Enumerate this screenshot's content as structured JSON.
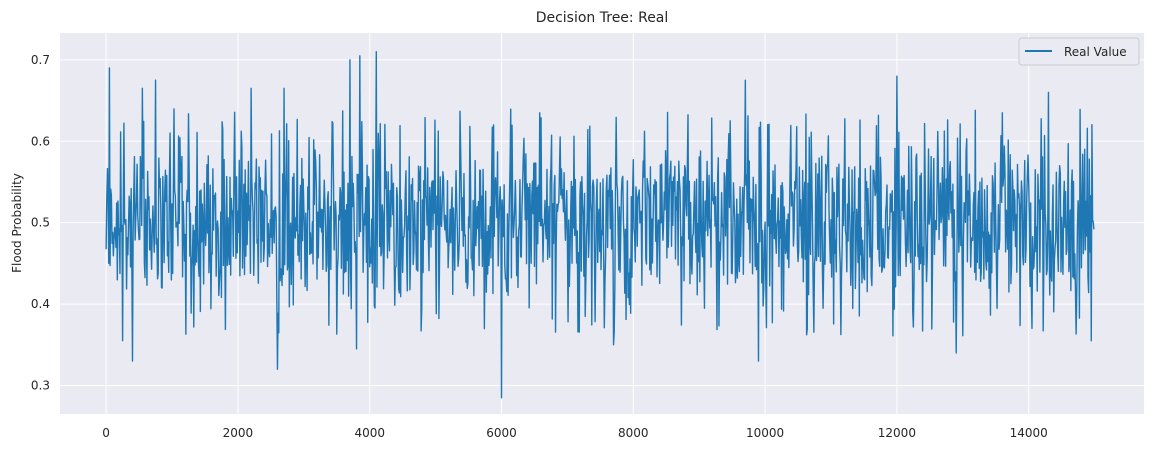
{
  "chart_data": {
    "type": "line",
    "title": "Decision Tree: Real",
    "xlabel": "",
    "ylabel": "Flood Probability",
    "xlim": [
      -700,
      15750
    ],
    "ylim": [
      0.265,
      0.733
    ],
    "xticks": [
      0,
      2000,
      4000,
      6000,
      8000,
      10000,
      12000,
      14000
    ],
    "yticks": [
      0.3,
      0.4,
      0.5,
      0.6,
      0.7
    ],
    "ytick_labels": [
      "0.3",
      "0.4",
      "0.5",
      "0.6",
      "0.7"
    ],
    "grid": true,
    "background": "#eaeaf2",
    "legend": {
      "location": "top-right",
      "entries": [
        "Real Value"
      ]
    },
    "series": [
      {
        "name": "Real Value",
        "color": "#1f77b4",
        "n_points": 15000,
        "x_range": [
          0,
          14999
        ],
        "typical_min": 0.4,
        "typical_max": 0.6,
        "min": 0.285,
        "max": 0.71,
        "notable_points": [
          {
            "x": 50,
            "y": 0.69
          },
          {
            "x": 250,
            "y": 0.355
          },
          {
            "x": 400,
            "y": 0.33
          },
          {
            "x": 550,
            "y": 0.665
          },
          {
            "x": 750,
            "y": 0.675
          },
          {
            "x": 2200,
            "y": 0.665
          },
          {
            "x": 2600,
            "y": 0.32
          },
          {
            "x": 2700,
            "y": 0.665
          },
          {
            "x": 3700,
            "y": 0.7
          },
          {
            "x": 3800,
            "y": 0.345
          },
          {
            "x": 3850,
            "y": 0.705
          },
          {
            "x": 4100,
            "y": 0.71
          },
          {
            "x": 6000,
            "y": 0.285
          },
          {
            "x": 7700,
            "y": 0.35
          },
          {
            "x": 9700,
            "y": 0.675
          },
          {
            "x": 9900,
            "y": 0.33
          },
          {
            "x": 12000,
            "y": 0.68
          },
          {
            "x": 12900,
            "y": 0.34
          },
          {
            "x": 14300,
            "y": 0.66
          },
          {
            "x": 14950,
            "y": 0.355
          }
        ]
      }
    ]
  }
}
